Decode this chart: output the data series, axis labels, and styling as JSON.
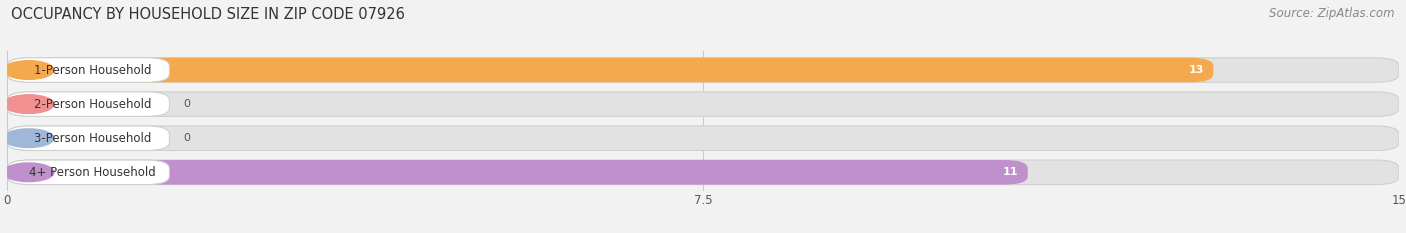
{
  "title": "OCCUPANCY BY HOUSEHOLD SIZE IN ZIP CODE 07926",
  "source": "Source: ZipAtlas.com",
  "categories": [
    "1-Person Household",
    "2-Person Household",
    "3-Person Household",
    "4+ Person Household"
  ],
  "values": [
    13,
    0,
    0,
    11
  ],
  "bar_colors": [
    "#F5A94E",
    "#F09090",
    "#A0B8D8",
    "#C090CC"
  ],
  "background_color": "#F2F2F2",
  "bar_background_color": "#E2E2E2",
  "bar_bg_edge_color": "#D0D0D0",
  "xlim": [
    0,
    15
  ],
  "xticks": [
    0,
    7.5,
    15
  ],
  "bar_height": 0.72,
  "title_fontsize": 10.5,
  "source_fontsize": 8.5,
  "label_fontsize": 8.5,
  "value_fontsize": 8
}
